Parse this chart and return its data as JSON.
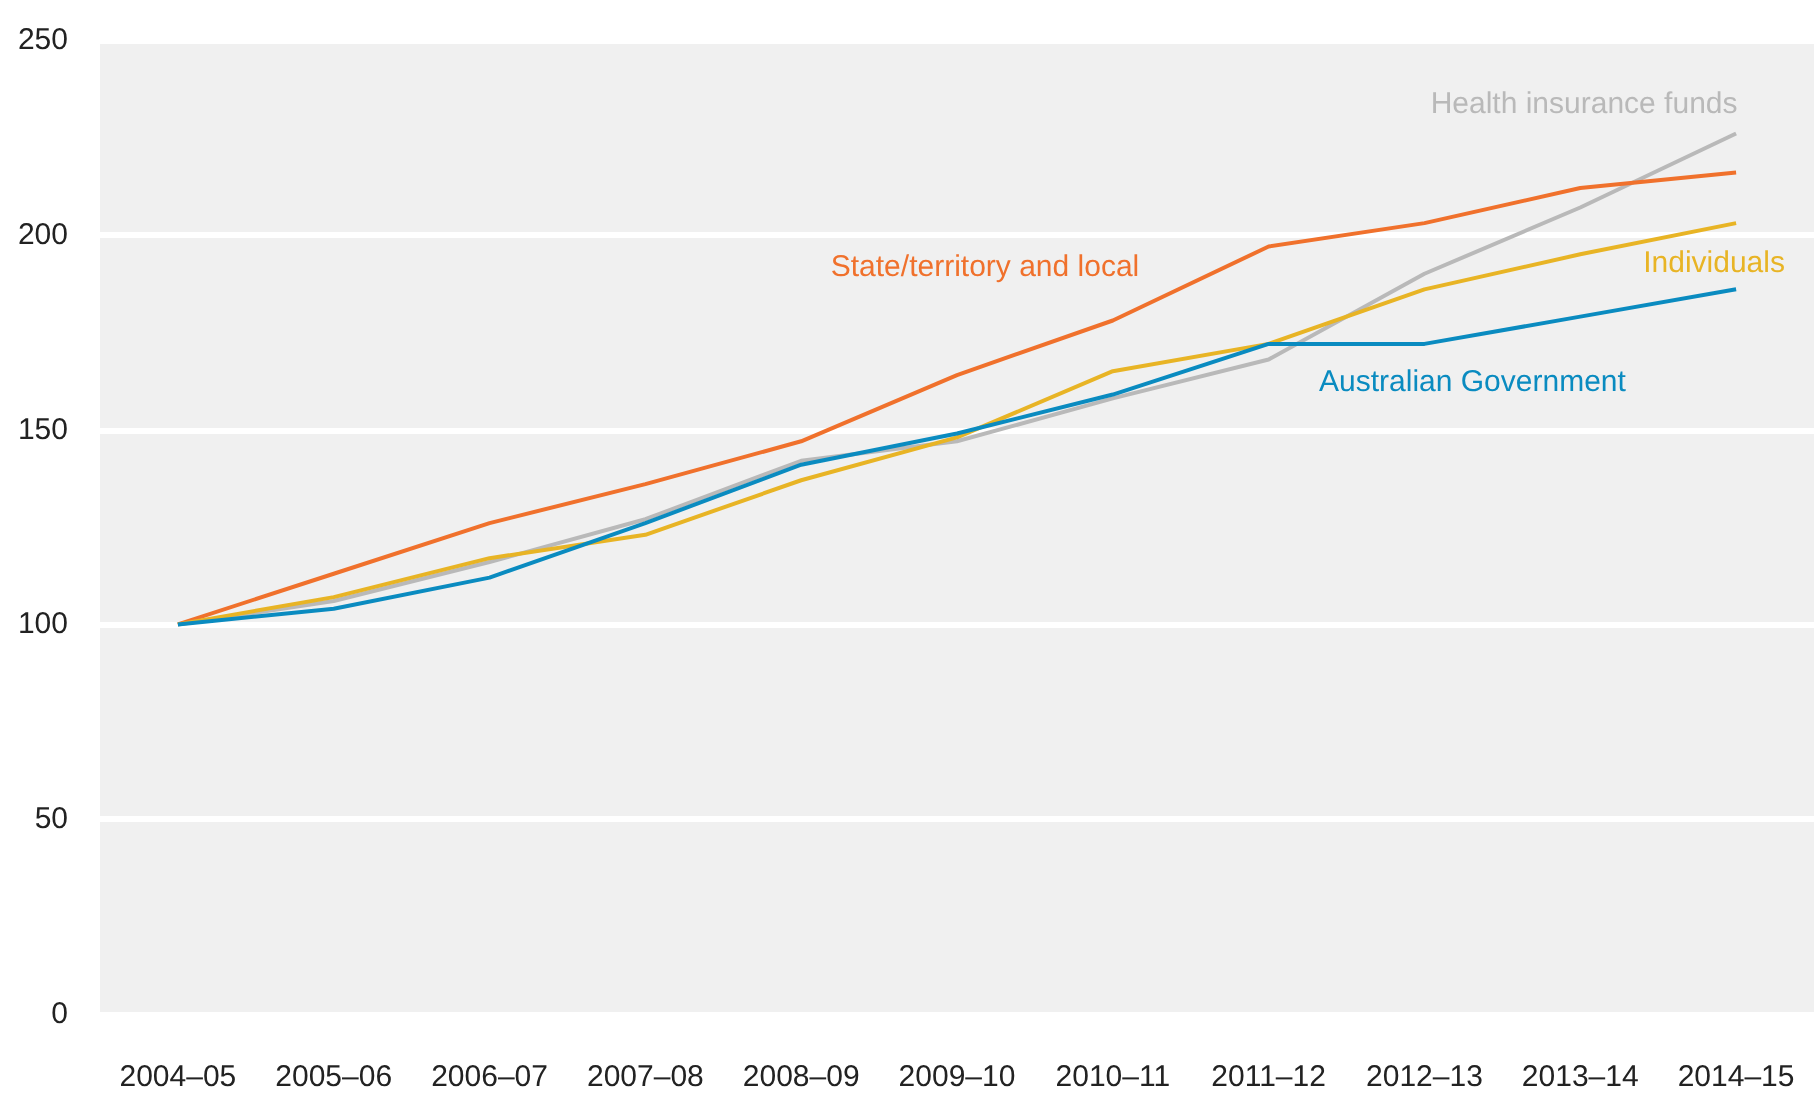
{
  "chart_data": {
    "type": "line",
    "categories": [
      "2004–05",
      "2005–06",
      "2006–07",
      "2007–08",
      "2008–09",
      "2009–10",
      "2010–11",
      "2011–12",
      "2012–13",
      "2013–14",
      "2014–15"
    ],
    "series": [
      {
        "name": "Health insurance funds",
        "color": "#b9b9b9",
        "values": [
          100,
          106,
          116,
          127,
          142,
          147,
          158,
          168,
          190,
          207,
          226
        ]
      },
      {
        "name": "State/territory and local",
        "color": "#f0712c",
        "values": [
          100,
          113,
          126,
          136,
          147,
          164,
          178,
          197,
          203,
          212,
          216
        ]
      },
      {
        "name": "Individuals",
        "color": "#e8b425",
        "values": [
          100,
          107,
          117,
          123,
          137,
          148,
          165,
          172,
          186,
          195,
          203
        ]
      },
      {
        "name": "Australian Government",
        "color": "#0a8bc0",
        "values": [
          100,
          104,
          112,
          126,
          141,
          149,
          159,
          172,
          172,
          179,
          186
        ]
      }
    ],
    "ylim": [
      0,
      250
    ],
    "yticks": [
      0,
      50,
      100,
      150,
      200,
      250
    ],
    "grid": "y",
    "legend": false,
    "marker": "none",
    "line_style": "solid"
  }
}
